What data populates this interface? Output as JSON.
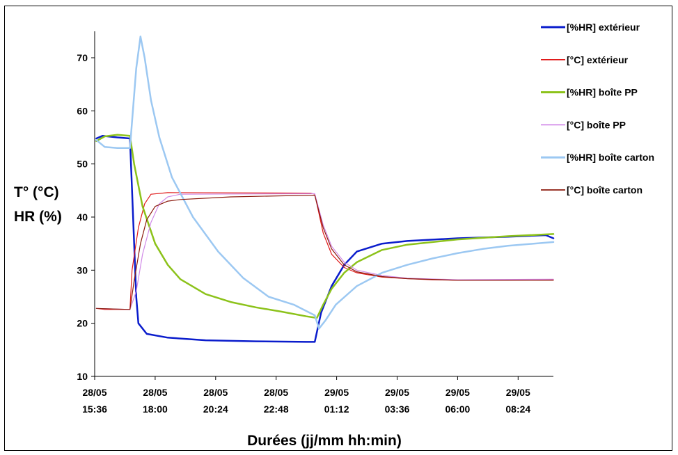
{
  "chart_data": {
    "type": "line",
    "title": "",
    "xlabel": "Durées (jj/mm hh:min)",
    "ylabel_line1": "T° (°C)",
    "ylabel_line2": "HR (%)",
    "ylim": [
      10,
      75
    ],
    "xlim": [
      "28/05 15:36",
      "29/05 09:48"
    ],
    "grid": false,
    "legend_position": "right",
    "yticks": [
      "10",
      "20",
      "30",
      "40",
      "50",
      "60",
      "70"
    ],
    "xticks": [
      {
        "date": "28/05",
        "time": "15:36"
      },
      {
        "date": "28/05",
        "time": "18:00"
      },
      {
        "date": "28/05",
        "time": "20:24"
      },
      {
        "date": "28/05",
        "time": "22:48"
      },
      {
        "date": "29/05",
        "time": "01:12"
      },
      {
        "date": "29/05",
        "time": "03:36"
      },
      {
        "date": "29/05",
        "time": "06:00"
      },
      {
        "date": "29/05",
        "time": "08:24"
      }
    ],
    "series": [
      {
        "name": "[%HR] extérieur",
        "color": "#0a1ccc",
        "width": 2.5,
        "points": [
          [
            "28/05 15:40",
            54.8
          ],
          [
            "28/05 15:55",
            55.3
          ],
          [
            "28/05 16:30",
            55.0
          ],
          [
            "28/05 17:00",
            54.8
          ],
          [
            "28/05 17:05",
            45.0
          ],
          [
            "28/05 17:10",
            35.0
          ],
          [
            "28/05 17:15",
            25.0
          ],
          [
            "28/05 17:20",
            20.0
          ],
          [
            "28/05 17:40",
            18.0
          ],
          [
            "28/05 18:30",
            17.3
          ],
          [
            "28/05 20:00",
            16.8
          ],
          [
            "28/05 22:00",
            16.6
          ],
          [
            "29/05 00:00",
            16.5
          ],
          [
            "29/05 00:20",
            16.5
          ],
          [
            "29/05 00:35",
            22.0
          ],
          [
            "29/05 01:00",
            27.0
          ],
          [
            "29/05 01:30",
            31.0
          ],
          [
            "29/05 02:00",
            33.5
          ],
          [
            "29/05 03:00",
            35.0
          ],
          [
            "29/05 04:00",
            35.5
          ],
          [
            "29/05 06:00",
            36.0
          ],
          [
            "29/05 08:00",
            36.3
          ],
          [
            "29/05 09:30",
            36.6
          ],
          [
            "29/05 09:48",
            36.0
          ]
        ]
      },
      {
        "name": "[°C] extérieur",
        "color": "#e01a1a",
        "width": 1.2,
        "points": [
          [
            "28/05 15:40",
            22.8
          ],
          [
            "28/05 16:00",
            22.6
          ],
          [
            "28/05 17:00",
            22.6
          ],
          [
            "28/05 17:05",
            30.0
          ],
          [
            "28/05 17:20",
            38.0
          ],
          [
            "28/05 17:35",
            42.5
          ],
          [
            "28/05 17:50",
            44.3
          ],
          [
            "28/05 18:30",
            44.6
          ],
          [
            "29/05 00:10",
            44.5
          ],
          [
            "29/05 00:20",
            44.3
          ],
          [
            "29/05 00:40",
            37.0
          ],
          [
            "29/05 01:00",
            33.0
          ],
          [
            "29/05 01:30",
            30.5
          ],
          [
            "29/05 02:00",
            29.5
          ],
          [
            "29/05 03:00",
            28.7
          ],
          [
            "29/05 04:00",
            28.4
          ],
          [
            "29/05 05:00",
            28.2
          ],
          [
            "29/05 06:00",
            28.1
          ],
          [
            "29/05 08:00",
            28.1
          ],
          [
            "29/05 09:48",
            28.2
          ]
        ]
      },
      {
        "name": "[%HR] boîte PP",
        "color": "#8cc21a",
        "width": 2.5,
        "points": [
          [
            "28/05 15:40",
            54.3
          ],
          [
            "28/05 16:00",
            55.2
          ],
          [
            "28/05 16:30",
            55.5
          ],
          [
            "28/05 17:00",
            55.3
          ],
          [
            "28/05 17:10",
            50.0
          ],
          [
            "28/05 17:30",
            42.0
          ],
          [
            "28/05 18:00",
            35.0
          ],
          [
            "28/05 18:30",
            31.0
          ],
          [
            "28/05 19:00",
            28.3
          ],
          [
            "28/05 20:00",
            25.5
          ],
          [
            "28/05 21:00",
            24.0
          ],
          [
            "28/05 22:00",
            23.0
          ],
          [
            "28/05 23:00",
            22.2
          ],
          [
            "29/05 00:00",
            21.3
          ],
          [
            "29/05 00:25",
            21.0
          ],
          [
            "29/05 00:40",
            23.5
          ],
          [
            "29/05 01:00",
            26.5
          ],
          [
            "29/05 01:30",
            29.5
          ],
          [
            "29/05 02:00",
            31.5
          ],
          [
            "29/05 03:00",
            33.8
          ],
          [
            "29/05 04:00",
            34.8
          ],
          [
            "29/05 06:00",
            35.8
          ],
          [
            "29/05 08:00",
            36.4
          ],
          [
            "29/05 09:48",
            36.8
          ]
        ]
      },
      {
        "name": "[°C] boîte PP",
        "color": "#d18ae8",
        "width": 1.2,
        "points": [
          [
            "28/05 15:40",
            22.8
          ],
          [
            "28/05 17:00",
            22.6
          ],
          [
            "28/05 17:15",
            26.0
          ],
          [
            "28/05 17:30",
            33.0
          ],
          [
            "28/05 17:50",
            39.0
          ],
          [
            "28/05 18:10",
            42.5
          ],
          [
            "28/05 18:30",
            43.8
          ],
          [
            "28/05 19:00",
            44.3
          ],
          [
            "29/05 00:20",
            44.4
          ],
          [
            "29/05 00:40",
            38.5
          ],
          [
            "29/05 01:00",
            34.5
          ],
          [
            "29/05 01:30",
            31.5
          ],
          [
            "29/05 02:00",
            30.0
          ],
          [
            "29/05 03:00",
            29.0
          ],
          [
            "29/05 04:00",
            28.5
          ],
          [
            "29/05 06:00",
            28.2
          ],
          [
            "29/05 09:48",
            28.3
          ]
        ]
      },
      {
        "name": "[%HR] boîte carton",
        "color": "#9cc8f2",
        "width": 2.5,
        "points": [
          [
            "28/05 15:40",
            54.5
          ],
          [
            "28/05 16:00",
            53.2
          ],
          [
            "28/05 16:30",
            53.0
          ],
          [
            "28/05 17:00",
            53.0
          ],
          [
            "28/05 17:05",
            58.0
          ],
          [
            "28/05 17:15",
            68.0
          ],
          [
            "28/05 17:25",
            74.0
          ],
          [
            "28/05 17:35",
            70.0
          ],
          [
            "28/05 17:50",
            62.0
          ],
          [
            "28/05 18:10",
            55.0
          ],
          [
            "28/05 18:40",
            47.5
          ],
          [
            "28/05 19:30",
            40.0
          ],
          [
            "28/05 20:30",
            33.5
          ],
          [
            "28/05 21:30",
            28.5
          ],
          [
            "28/05 22:30",
            25.0
          ],
          [
            "28/05 23:30",
            23.5
          ],
          [
            "29/05 00:20",
            21.5
          ],
          [
            "29/05 00:30",
            19.0
          ],
          [
            "29/05 00:45",
            20.5
          ],
          [
            "29/05 01:10",
            23.5
          ],
          [
            "29/05 02:00",
            27.0
          ],
          [
            "29/05 03:00",
            29.5
          ],
          [
            "29/05 04:00",
            31.0
          ],
          [
            "29/05 05:00",
            32.2
          ],
          [
            "29/05 06:00",
            33.2
          ],
          [
            "29/05 07:00",
            34.0
          ],
          [
            "29/05 08:00",
            34.6
          ],
          [
            "29/05 09:48",
            35.3
          ]
        ]
      },
      {
        "name": "[°C] boîte carton",
        "color": "#8b1a0d",
        "width": 1.2,
        "points": [
          [
            "28/05 15:40",
            22.8
          ],
          [
            "28/05 17:00",
            22.6
          ],
          [
            "28/05 17:10",
            28.0
          ],
          [
            "28/05 17:25",
            35.0
          ],
          [
            "28/05 17:40",
            39.5
          ],
          [
            "28/05 18:00",
            42.0
          ],
          [
            "28/05 18:30",
            43.0
          ],
          [
            "28/05 19:00",
            43.3
          ],
          [
            "28/05 21:00",
            43.8
          ],
          [
            "28/05 23:00",
            44.0
          ],
          [
            "29/05 00:20",
            44.1
          ],
          [
            "29/05 00:40",
            38.0
          ],
          [
            "29/05 01:00",
            34.0
          ],
          [
            "29/05 01:30",
            31.0
          ],
          [
            "29/05 02:00",
            29.7
          ],
          [
            "29/05 03:00",
            28.8
          ],
          [
            "29/05 04:00",
            28.4
          ],
          [
            "29/05 06:00",
            28.1
          ],
          [
            "29/05 09:48",
            28.1
          ]
        ]
      }
    ]
  }
}
